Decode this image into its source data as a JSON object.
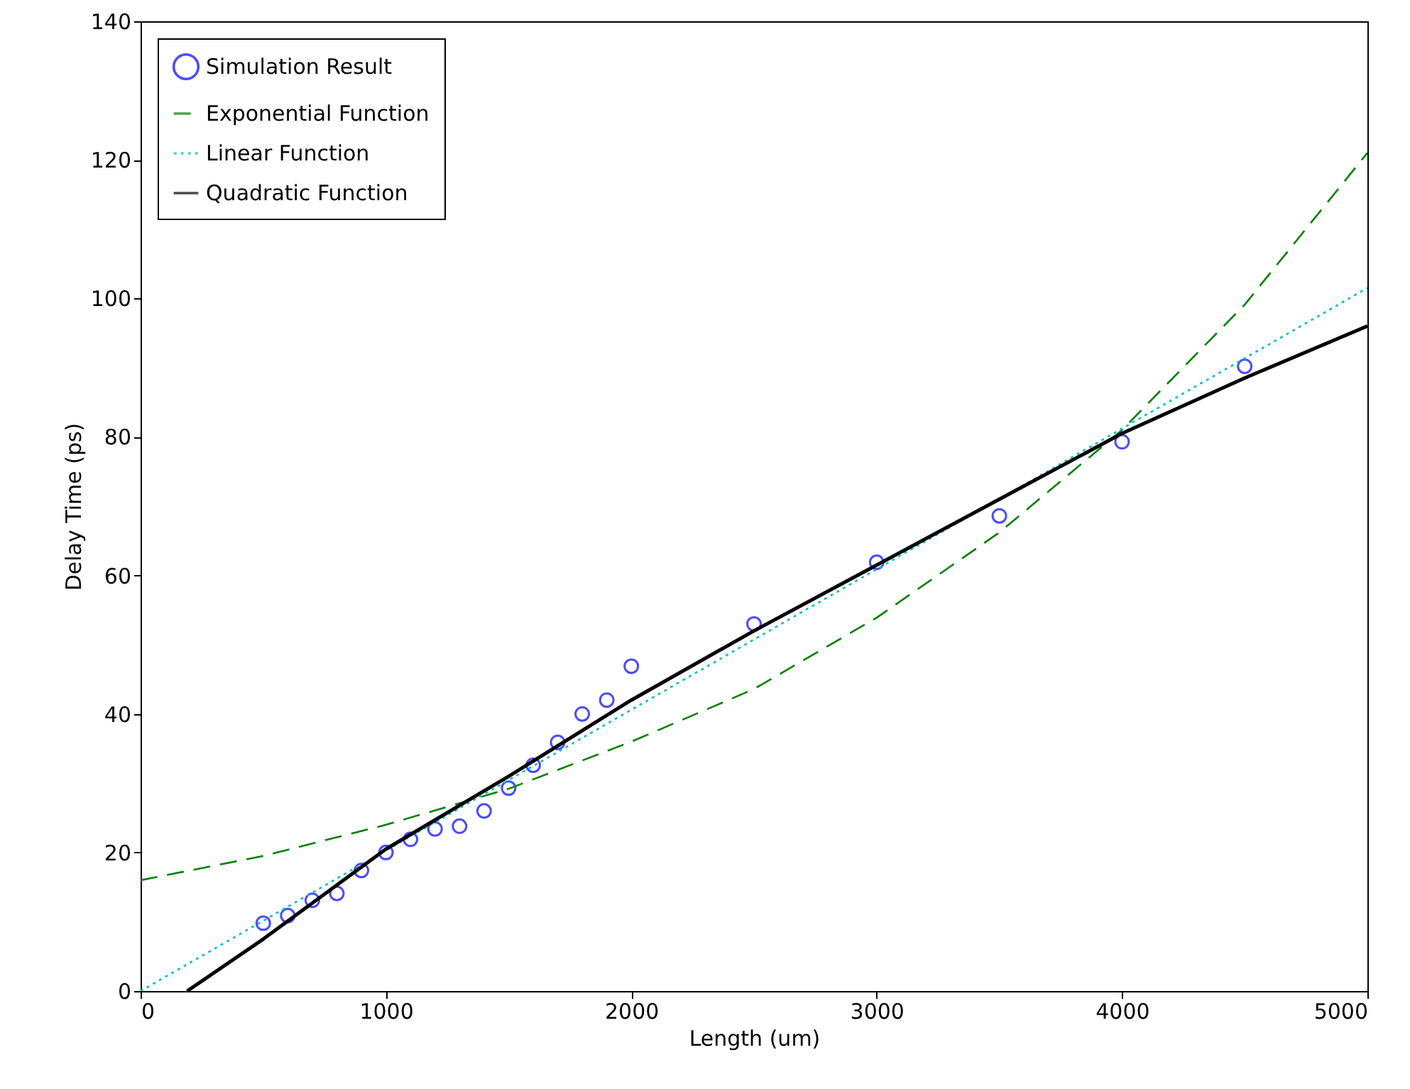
{
  "chart_data": {
    "type": "line",
    "xlabel": "Length (um)",
    "ylabel": "Delay Time (ps)",
    "xlim": [
      0,
      5000
    ],
    "xticks": [
      0,
      1000,
      2000,
      3000,
      4000,
      5000
    ],
    "ylim": [
      0,
      140
    ],
    "yticks": [
      0,
      20,
      40,
      60,
      80,
      100,
      120,
      140
    ],
    "grid": false,
    "legend": "top left",
    "series": [
      {
        "name": "Simulation Result",
        "type": "scatter",
        "marker": "circle",
        "color": "#0000ff",
        "x": [
          500,
          600,
          700,
          800,
          900,
          1000,
          1100,
          1200,
          1300,
          1400,
          1500,
          1600,
          1700,
          1800,
          1900,
          2000,
          2500,
          3000,
          3500,
          4000,
          4500
        ],
        "values": [
          9.8,
          10.9,
          13.1,
          14.1,
          17.4,
          20,
          21.9,
          23.4,
          23.8,
          26,
          29.3,
          32.6,
          35.9,
          40,
          42,
          46.9,
          53,
          61.9,
          68.6,
          79.3,
          90.2
        ]
      },
      {
        "name": "Exponential Function",
        "line_style": "dashed",
        "color": "#008000",
        "x": [
          0,
          500,
          1000,
          1500,
          2000,
          2500,
          3000,
          3500,
          4000,
          4500,
          5000
        ],
        "values": [
          16,
          19.5,
          24,
          29.2,
          36,
          43.6,
          53.9,
          66.2,
          81,
          99.1,
          121
        ]
      },
      {
        "name": "Linear Function",
        "line_style": "dotted",
        "color": "#00bfbf",
        "x": [
          0,
          1000,
          2000,
          3000,
          4000,
          5000
        ],
        "values": [
          0,
          20.3,
          40.6,
          60.9,
          81.2,
          101.5
        ]
      },
      {
        "name": "Quadratic Function",
        "line_style": "solid",
        "color": "#000000",
        "x": [
          190,
          500,
          1000,
          1500,
          2000,
          2500,
          3000,
          3500,
          4000,
          4500,
          5000
        ],
        "values": [
          0,
          7.5,
          20.5,
          31,
          42,
          52,
          61.5,
          71,
          80.5,
          88.5,
          96
        ]
      }
    ]
  }
}
